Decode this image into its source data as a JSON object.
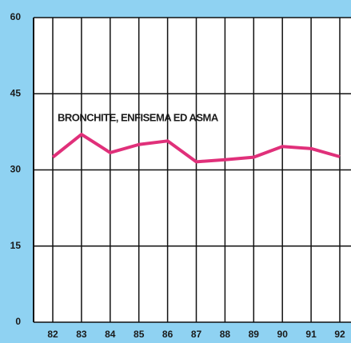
{
  "chart_data": {
    "type": "line",
    "annotation": "BRONCHITE, ENFISEMA ED ASMA",
    "categories": [
      "82",
      "83",
      "84",
      "85",
      "86",
      "87",
      "88",
      "89",
      "90",
      "91",
      "92"
    ],
    "series": [
      {
        "name": "BRONCHITE, ENFISEMA ED ASMA",
        "color": "#e0307a",
        "values": [
          32.5,
          37,
          33.4,
          35,
          35.7,
          31.6,
          32,
          32.5,
          34.6,
          34.2,
          32.6
        ]
      }
    ],
    "ylim": [
      0,
      60
    ],
    "yticks": [
      0,
      15,
      30,
      45,
      60
    ],
    "grid": true
  }
}
